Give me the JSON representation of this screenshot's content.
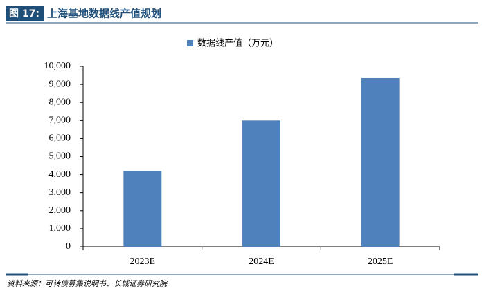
{
  "header": {
    "label": "图 17:"
  },
  "chart_data": {
    "type": "bar",
    "title": "上海基地数据线产值规划",
    "categories": [
      "2023E",
      "2024E",
      "2025E"
    ],
    "series": [
      {
        "name": "数据线产值（万元）",
        "color": "#4f81bd",
        "values": [
          4200,
          7000,
          9350
        ]
      }
    ],
    "ylim": [
      0,
      10000
    ],
    "yticks": [
      0,
      {
        "value": 1000,
        "label": "1,000"
      },
      {
        "value": 2000,
        "label": "2,000"
      },
      {
        "value": 3000,
        "label": "3,000"
      },
      {
        "value": 4000,
        "label": "4,000"
      },
      {
        "value": 5000,
        "label": "5,000"
      },
      {
        "value": 6000,
        "label": "6,000"
      },
      {
        "value": 7000,
        "label": "7,000"
      },
      {
        "value": 8000,
        "label": "8,000"
      },
      {
        "value": 9000,
        "label": "9,000"
      },
      {
        "value": 10000,
        "label": "10,000"
      }
    ],
    "grid": false,
    "legend": "top",
    "source": "资料来源：可转债募集说明书、长城证券研究院"
  }
}
